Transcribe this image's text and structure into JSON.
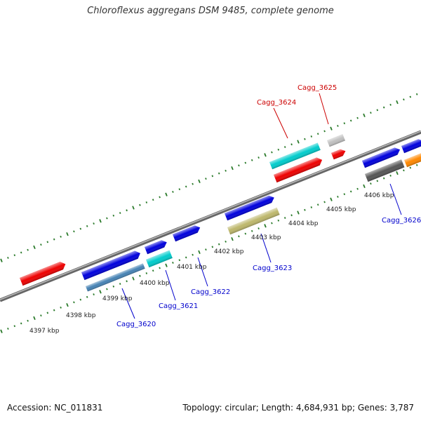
{
  "title": "Chloroflexus aggregans DSM 9485, complete genome",
  "footer": {
    "accession": "Accession: NC_011831",
    "summary": "Topology: circular; Length: 4,684,931 bp; Genes: 3,787"
  },
  "colors": {
    "background": "#ffffff",
    "backbone": "#8a8a8a",
    "dotted_ring": "#2a7a2a",
    "label_red": "#cc0000",
    "label_blue": "#0000cc"
  },
  "ticks": [
    {
      "label": "4397 kbp"
    },
    {
      "label": "4398 kbp"
    },
    {
      "label": "4399 kbp"
    },
    {
      "label": "4400 kbp"
    },
    {
      "label": "4401 kbp"
    },
    {
      "label": "4402 kbp"
    },
    {
      "label": "4403 kbp"
    },
    {
      "label": "4404 kbp"
    },
    {
      "label": "4405 kbp"
    },
    {
      "label": "4406 kbp"
    }
  ],
  "gene_labels": [
    {
      "id": "Cagg_3624",
      "text": "Cagg_3624",
      "color": "#cc0000"
    },
    {
      "id": "Cagg_3625",
      "text": "Cagg_3625",
      "color": "#cc0000"
    },
    {
      "id": "Cagg_3620",
      "text": "Cagg_3620",
      "color": "#0000cc"
    },
    {
      "id": "Cagg_3621",
      "text": "Cagg_3621",
      "color": "#0000cc"
    },
    {
      "id": "Cagg_3622",
      "text": "Cagg_3622",
      "color": "#0000cc"
    },
    {
      "id": "Cagg_3623",
      "text": "Cagg_3623",
      "color": "#0000cc"
    },
    {
      "id": "Cagg_3626",
      "text": "Cagg_3626",
      "color": "#0000cc"
    }
  ],
  "feature_colors": [
    "#ee0000",
    "#0000dd",
    "#00cccc",
    "#bdb76b",
    "#c0c0c0",
    "#555555",
    "#ff8800",
    "#4682b4"
  ]
}
